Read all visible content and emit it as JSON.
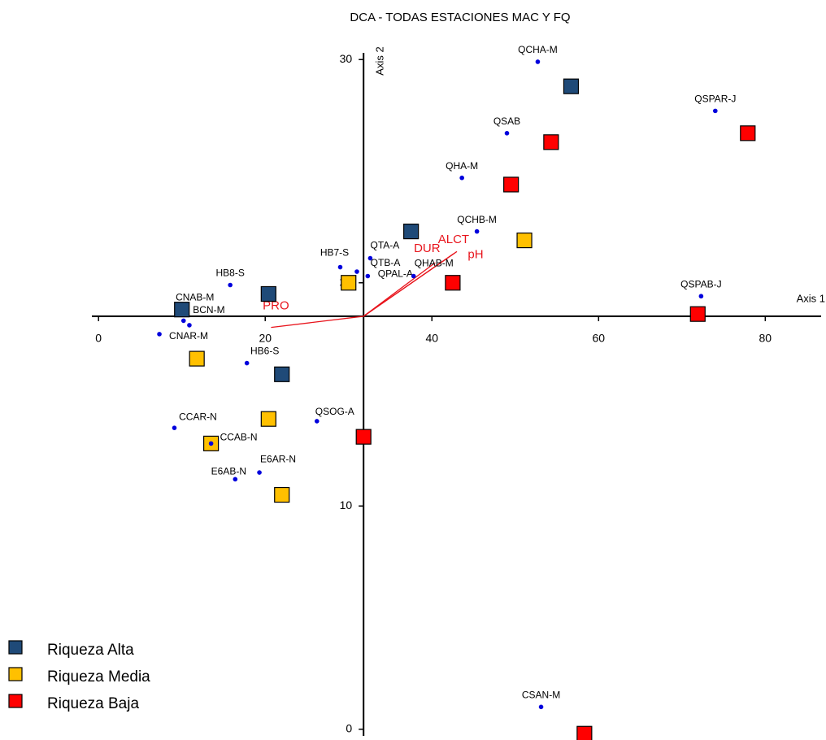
{
  "chart_data": {
    "type": "scatter",
    "title": "DCA - TODAS ESTACIONES MAC Y FQ",
    "x_label": "Axis 1",
    "y_label": "Axis 2",
    "xlim": [
      -0.8,
      86.7
    ],
    "ylim": [
      -0.3,
      30.3
    ],
    "xticks": [
      0,
      20,
      40,
      60,
      80
    ],
    "yticks": [
      0,
      10,
      20,
      30
    ],
    "axis_cross": [
      31.8,
      18.5
    ],
    "sites": {
      "color": "#0000dd",
      "labels": [
        "QCHA-M",
        "QSPAR-J",
        "QSAB",
        "QHA-M",
        "QCHB-M",
        "QTA-A",
        "HB7-S",
        "QTB-A",
        "QPAL-A",
        "QHAB-M",
        "HB8-S",
        "QSPAB-J",
        "CNAB-M",
        "BCN-M",
        "CNAR-M",
        "HB6-S",
        "QSOG-A",
        "CCAR-N",
        "CCAB-N",
        "E6AR-N",
        "E6AB-N",
        "CSAN-M"
      ],
      "x": [
        52.7,
        74.0,
        49.0,
        43.6,
        45.4,
        32.6,
        29.0,
        31.0,
        32.3,
        37.8,
        15.8,
        72.3,
        10.2,
        10.9,
        7.3,
        17.8,
        26.2,
        9.1,
        13.5,
        19.3,
        16.4,
        53.1
      ],
      "y": [
        29.9,
        27.7,
        26.7,
        24.7,
        22.3,
        21.1,
        20.7,
        20.5,
        20.3,
        20.3,
        19.9,
        19.4,
        18.3,
        18.1,
        17.7,
        16.4,
        13.8,
        13.5,
        12.8,
        11.5,
        11.2,
        1.0
      ]
    },
    "series": [
      {
        "name": "Riqueza Alta",
        "color": "#1f4a78",
        "x": [
          56.7,
          37.5,
          20.4,
          10.0,
          22.0
        ],
        "values": [
          28.8,
          22.3,
          19.5,
          18.8,
          15.9
        ]
      },
      {
        "name": "Riqueza Media",
        "color": "#ffc000",
        "x": [
          51.1,
          30.0,
          11.8,
          20.4,
          13.5,
          22.0
        ],
        "values": [
          21.9,
          20.0,
          16.6,
          13.9,
          12.8,
          10.5
        ]
      },
      {
        "name": "Riqueza Baja",
        "color": "#ff0000",
        "x": [
          77.9,
          54.3,
          49.5,
          42.5,
          71.9,
          31.8,
          58.3
        ],
        "values": [
          26.7,
          26.3,
          24.4,
          20.0,
          18.6,
          13.1,
          -0.2
        ]
      }
    ],
    "vectors": {
      "color": "#e8141c",
      "names": [
        "DUR",
        "ALCT",
        "pH",
        "PRO"
      ],
      "x": [
        40.4,
        42.6,
        43.0,
        20.7
      ],
      "y": [
        20.9,
        21.3,
        21.4,
        18.0
      ]
    }
  }
}
